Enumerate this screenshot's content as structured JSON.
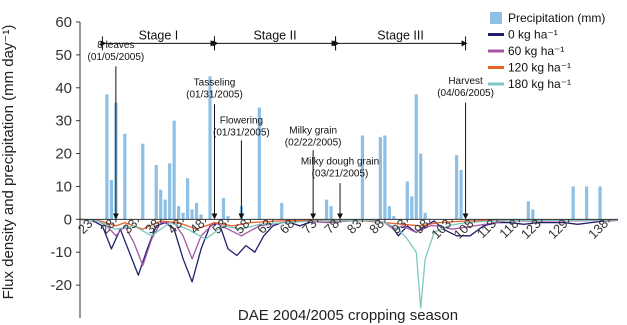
{
  "chart_data": {
    "type": "bar",
    "xlabel": "DAE 2004/2005 cropping season",
    "ylabel": "Flux density and precipitation (mm day⁻¹)",
    "ylim": [
      -30,
      60
    ],
    "yticks": [
      -20,
      -10,
      0,
      10,
      20,
      30,
      40,
      50,
      60
    ],
    "ytick_labels": [
      "-20",
      "-10",
      "0",
      "10",
      "20",
      "30",
      "40",
      "50",
      "60"
    ],
    "xlim": [
      20,
      140
    ],
    "xticks": [
      23,
      28,
      33,
      38,
      43,
      48,
      53,
      58,
      63,
      68,
      73,
      78,
      83,
      88,
      93,
      98,
      103,
      108,
      113,
      118,
      123,
      129,
      138
    ],
    "legend_position": "top-right",
    "legend": [
      {
        "label": "Precipitation (mm)",
        "color": "#8ec0e6",
        "kind": "box"
      },
      {
        "label": "0 kg ha⁻¹",
        "color": "#1f1f6e",
        "kind": "line"
      },
      {
        "label": "60 kg ha⁻¹",
        "color": "#a855a8",
        "kind": "line"
      },
      {
        "label": "120 kg ha⁻¹",
        "color": "#e8622a",
        "kind": "line"
      },
      {
        "label": "180 kg ha⁻¹",
        "color": "#7ec8c0",
        "kind": "line"
      }
    ],
    "precipitation": {
      "name": "Precipitation (mm)",
      "color": "#8ec0e6",
      "x": [
        26,
        27,
        28,
        30,
        34,
        37,
        38,
        39,
        40,
        41,
        42,
        43,
        44,
        45,
        46,
        47,
        49,
        52,
        53,
        56,
        60,
        65,
        75,
        76,
        83,
        87,
        88,
        89,
        90,
        93,
        94,
        95,
        96,
        97,
        104,
        105,
        120,
        121,
        130,
        133,
        136
      ],
      "values": [
        38,
        12,
        35.5,
        26,
        23,
        16.5,
        9,
        6,
        17,
        30,
        4,
        2,
        12.5,
        3,
        5,
        1.5,
        43.5,
        6.5,
        1,
        4,
        34,
        5,
        6,
        4,
        25.5,
        25,
        25.5,
        4,
        1,
        11.5,
        7,
        38,
        20,
        2,
        19.5,
        15,
        5.5,
        3,
        10,
        10,
        10
      ]
    },
    "series": [
      {
        "name": "0 kg ha⁻¹",
        "color": "#1f1f6e",
        "x": [
          20,
          23,
          25,
          27,
          29,
          31,
          33,
          35,
          37,
          39,
          41,
          43,
          45,
          47,
          49,
          51,
          53,
          55,
          57,
          59,
          61,
          63,
          65,
          67,
          69,
          71,
          73,
          75,
          77,
          79,
          85,
          88,
          90,
          91,
          93,
          95,
          97,
          99,
          101,
          104,
          107,
          110,
          113,
          116,
          119,
          122,
          125,
          128,
          131,
          134,
          137,
          140
        ],
        "y": [
          0,
          -0.5,
          -2,
          -9,
          -3,
          -10,
          -17,
          -9,
          -2,
          -1,
          -3,
          -12,
          -19,
          -9,
          -2,
          -1,
          -9,
          -11,
          -8,
          -10,
          -5,
          -2,
          -1,
          -1,
          -2,
          -1,
          -0.5,
          -0.5,
          -1,
          -0.5,
          -0.3,
          -1,
          -3,
          -5,
          -2,
          -4,
          -2,
          -0.5,
          -3,
          -5,
          -5,
          -2,
          -1,
          -1,
          -1.5,
          -1,
          -1,
          -1,
          -1.5,
          -1,
          -0.5,
          -0.3
        ]
      },
      {
        "name": "60 kg ha⁻¹",
        "color": "#a855a8",
        "x": [
          20,
          24,
          26,
          28,
          30,
          32,
          34,
          36,
          38,
          41,
          43,
          45,
          47,
          50,
          53,
          56,
          60,
          65,
          70,
          75,
          80,
          85,
          88,
          90,
          92,
          95,
          98,
          100,
          103,
          108,
          115,
          125,
          140
        ],
        "y": [
          0,
          -0.5,
          -2,
          -5,
          -2,
          -7,
          -14,
          -6,
          -1,
          -1,
          -5,
          -12,
          -5,
          -1,
          -3,
          -5,
          -2,
          -1,
          -0.5,
          -1,
          -0.5,
          -0.3,
          -1,
          -3,
          -2,
          -4,
          -2,
          -2,
          -3,
          -2,
          -0.5,
          -0.5,
          -0.3
        ]
      },
      {
        "name": "120 kg ha⁻¹",
        "color": "#e8622a",
        "x": [
          20,
          24,
          28,
          30,
          34,
          38,
          42,
          46,
          50,
          54,
          58,
          64,
          70,
          76,
          82,
          88,
          92,
          96,
          100,
          106,
          112,
          120,
          130,
          140
        ],
        "y": [
          0,
          -0.3,
          -2,
          -1,
          -3,
          -0.5,
          -1,
          -3,
          -1,
          -2,
          -1,
          -0.5,
          -0.3,
          -0.5,
          -0.3,
          -1,
          -1.5,
          -2,
          -1,
          -0.5,
          -0.3,
          -0.3,
          -0.3,
          -0.2
        ]
      },
      {
        "name": "180 kg ha⁻¹",
        "color": "#7ec8c0",
        "x": [
          20,
          24,
          28,
          32,
          36,
          40,
          44,
          48,
          52,
          56,
          60,
          66,
          72,
          78,
          84,
          88,
          91,
          93,
          95,
          96,
          97,
          99,
          102,
          106,
          112,
          120,
          130,
          140
        ],
        "y": [
          0,
          -0.5,
          -3,
          -2,
          -5,
          -1,
          -3,
          -6,
          -2,
          -3,
          -1.5,
          -1,
          -0.5,
          -0.5,
          -0.3,
          -1,
          -3,
          -6,
          -10,
          -27,
          -12,
          -4,
          -2,
          -1,
          -0.5,
          -0.3,
          -0.3,
          -0.2
        ]
      }
    ],
    "stages": [
      {
        "label": "Stage I",
        "from": 25,
        "to": 50
      },
      {
        "label": "Stage II",
        "from": 50,
        "to": 77
      },
      {
        "label": "Stage III",
        "from": 77,
        "to": 106
      }
    ],
    "annotations": [
      {
        "lines": [
          "8 leaves",
          "(01/05/2005)"
        ],
        "x": 28,
        "arrow_top": 46.5,
        "label_y": 48.5
      },
      {
        "lines": [
          "Tasseling",
          "(01/31/2005)"
        ],
        "x": 50,
        "arrow_top": 35,
        "label_y": 37
      },
      {
        "lines": [
          "Flowering",
          "(01/31/2005)"
        ],
        "x": 56,
        "arrow_top": 24,
        "label_y": 25.5
      },
      {
        "lines": [
          "Milky grain",
          "(02/22/2005)"
        ],
        "x": 72,
        "arrow_top": 21,
        "label_y": 22.5
      },
      {
        "lines": [
          "Milky dough grain",
          "(03/21/2005)"
        ],
        "x": 78,
        "arrow_top": 11,
        "label_y": 13
      },
      {
        "lines": [
          "Harvest",
          "(04/06/2005)"
        ],
        "x": 106,
        "arrow_top": 35.5,
        "label_y": 37.5
      }
    ]
  }
}
